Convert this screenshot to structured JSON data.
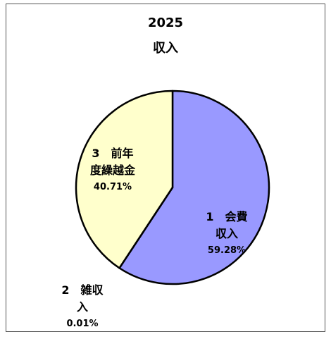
{
  "chart_data": {
    "type": "pie",
    "title": "2025",
    "subtitle": "収入",
    "categories": [
      "1　会費収入",
      "2　雑収入",
      "3　前年度繰越金"
    ],
    "values": [
      59.28,
      0.01,
      40.71
    ],
    "value_labels": [
      "59.28%",
      "0.01%",
      "40.71%"
    ],
    "colors": [
      "#9999ff",
      "#993366",
      "#ffffcc"
    ]
  }
}
